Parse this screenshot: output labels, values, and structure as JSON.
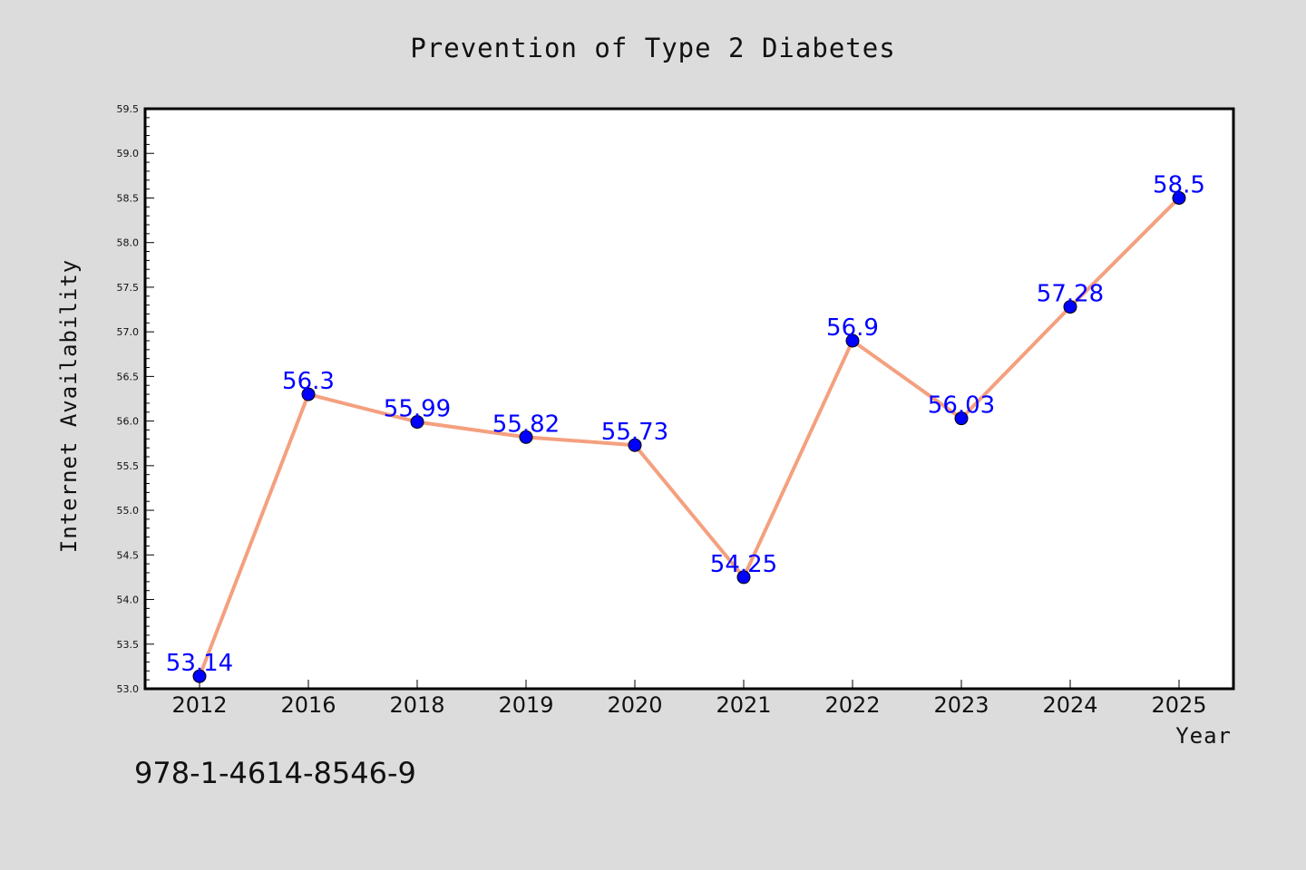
{
  "chart_data": {
    "type": "line",
    "title": "Prevention of Type 2 Diabetes",
    "xlabel": "Year",
    "ylabel": "Internet Availability",
    "categories": [
      "2012",
      "2016",
      "2018",
      "2019",
      "2020",
      "2021",
      "2022",
      "2023",
      "2024",
      "2025"
    ],
    "series": [
      {
        "values": [
          53.14,
          56.3,
          55.99,
          55.82,
          55.73,
          54.25,
          56.9,
          56.03,
          57.28,
          58.5
        ],
        "data_labels": [
          "53.14",
          "56.3",
          "55.99",
          "55.82",
          "55.73",
          "54.25",
          "56.9",
          "56.03",
          "57.28",
          "58.5"
        ]
      }
    ],
    "ylim": [
      53.0,
      59.5
    ],
    "yticks": [
      "53.0",
      "53.5",
      "54.0",
      "54.5",
      "55.0",
      "55.5",
      "56.0",
      "56.5",
      "57.0",
      "57.5",
      "58.0",
      "58.5",
      "59.0",
      "59.5"
    ],
    "grid": false,
    "legend": "none",
    "colors": {
      "line": "#f4a07f",
      "marker": "#0000ff",
      "data_label": "#0000ff",
      "background": "#dcdcdc",
      "plot_background": "#ffffff"
    }
  },
  "footer_note": "978-1-4614-8546-9"
}
